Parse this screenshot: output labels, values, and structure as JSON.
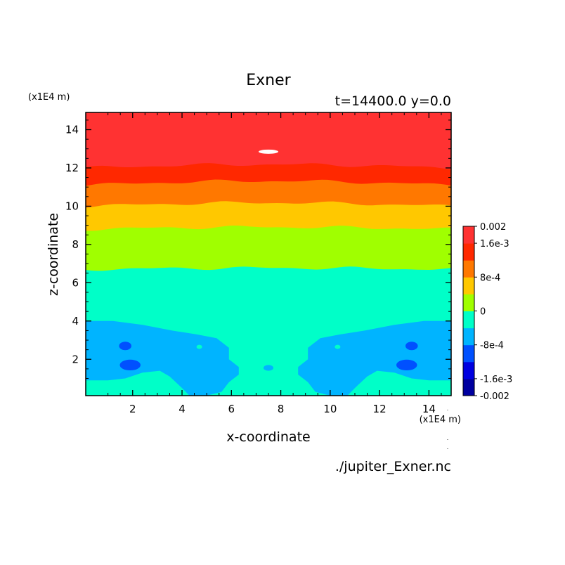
{
  "chart_data": {
    "type": "heatmap",
    "title": "Exner",
    "subtitle": "t=14400.0 y=0.0",
    "xlabel": "x-coordinate",
    "ylabel": "z-coordinate",
    "x_unit": "(x1E4 m)",
    "y_unit": "(x1E4 m)",
    "xlim": [
      0.1,
      14.9
    ],
    "ylim": [
      0.1,
      14.9
    ],
    "xticks": [
      2,
      4,
      6,
      8,
      10,
      12,
      14
    ],
    "yticks": [
      2,
      4,
      6,
      8,
      10,
      12,
      14
    ],
    "xtick_labels": [
      "2",
      "4",
      "6",
      "8",
      "10",
      "12",
      "14"
    ],
    "ytick_labels": [
      "2",
      "4",
      "6",
      "8",
      "10",
      "12",
      "14"
    ],
    "source_file": "./jupiter_Exner.nc",
    "colorbar": {
      "min": -0.002,
      "max": 0.002,
      "levels": [
        -0.002,
        -0.0016,
        -0.0012,
        -0.0008,
        -0.0004,
        0,
        0.0004,
        0.0008,
        0.0012,
        0.0016,
        0.002
      ],
      "colors": [
        "#0000a0",
        "#0000e0",
        "#0050ff",
        "#00b4ff",
        "#00ffc8",
        "#a0ff00",
        "#ffc800",
        "#ff7800",
        "#ff2800",
        "#ff3232"
      ],
      "tick_values": [
        0.002,
        0.0016,
        0.0008,
        0,
        -0.0008,
        -0.0016,
        -0.002
      ],
      "tick_labels": [
        "0.002",
        "1.6e-3",
        "8e-4",
        "0",
        "-8e-4",
        "-1.6e-3",
        "-0.002"
      ]
    },
    "contour_bands": [
      {
        "range": [
          0.0016,
          0.002
        ],
        "z_bottom": 12.0,
        "color": "#ff3232"
      },
      {
        "range": [
          0.0012,
          0.0016
        ],
        "z_bottom": 11.1,
        "color": "#ff2800"
      },
      {
        "range": [
          0.0008,
          0.0012
        ],
        "z_bottom": 10.0,
        "color": "#ff7800"
      },
      {
        "range": [
          0.0004,
          0.0008
        ],
        "z_bottom": 8.8,
        "color": "#ffc800"
      },
      {
        "range": [
          0,
          0.0004
        ],
        "z_bottom": 6.7,
        "color": "#a0ff00"
      },
      {
        "range": [
          -0.0004,
          0
        ],
        "z_bottom": 0.1,
        "color": "#00ffc8"
      },
      {
        "range": [
          -0.0008,
          -0.0004
        ],
        "z_bottom": 0.1,
        "z_top": 4.0,
        "color": "#00b4ff"
      },
      {
        "range": [
          -0.0012,
          -0.0008
        ],
        "z_bottom": 1.5,
        "z_top": 2.9,
        "color": "#0050ff"
      }
    ]
  }
}
